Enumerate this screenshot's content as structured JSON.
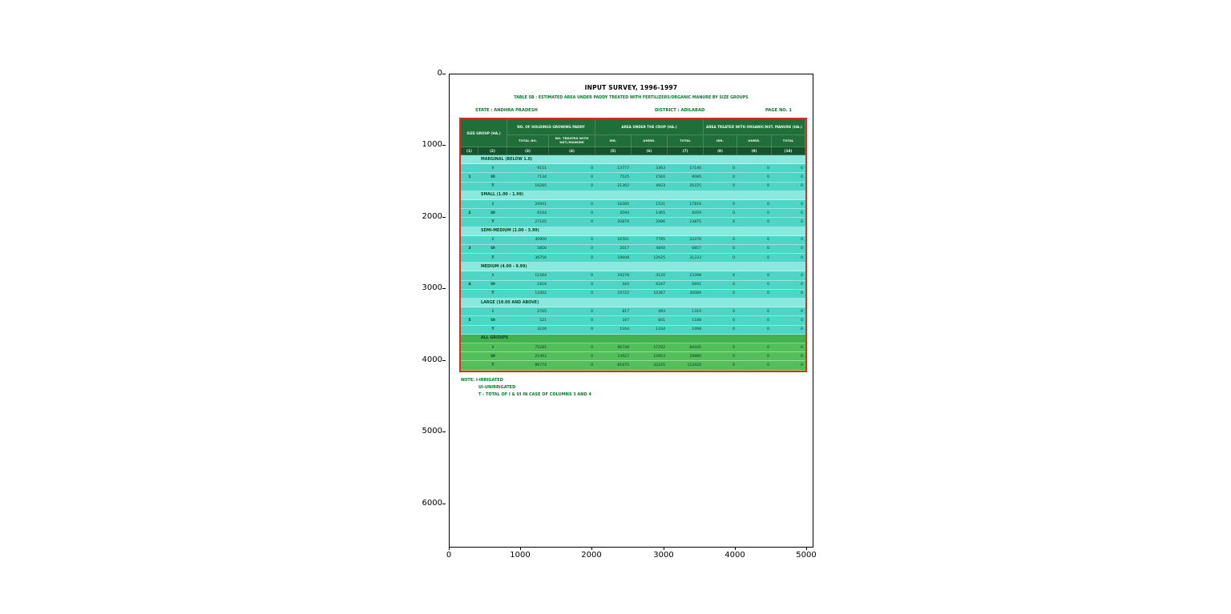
{
  "figure": {
    "axes": {
      "x_ticks": [
        "0",
        "1000",
        "2000",
        "3000",
        "4000",
        "5000"
      ],
      "y_ticks": [
        "0",
        "1000",
        "2000",
        "3000",
        "4000",
        "5000",
        "6000"
      ]
    }
  },
  "document": {
    "title": "INPUT SURVEY, 1996-1997",
    "subtitle": "TABLE 5B : ESTIMATED AREA UNDER PADDY TREATED WITH FERTILIZERS/ORGANIC MANURE BY SIZE GROUPS",
    "state_label": "STATE : ANDHRA PRADESH",
    "district_label": "DISTRICT : ADILABAD",
    "page_label": "PAGE NO. 1",
    "notes": [
      "NOTE: I-IRRIGATED",
      "UI-UNIRRIGATED",
      "T - TOTAL OF I & UI IN CASE OF COLUMNS 3 AND 4"
    ]
  },
  "table": {
    "col_groups": [
      "SIZE GROUP (HA.)",
      "NO. OF HOLDINGS GROWING PADDY",
      "AREA UNDER THE CROP (HA.)",
      "AREA TREATED WITH ORGANIC/NUT. MANURE (HA.)"
    ],
    "sub_headers": [
      "TOTAL NO.",
      "NO. TREATED WITH NUT./MANURE",
      "IRR.",
      "UNIRR.",
      "TOTAL",
      "IRR.",
      "UNIRR.",
      "TOTAL"
    ],
    "col_numbers": [
      "(1)",
      "(2)",
      "(3)",
      "(4)",
      "(5)",
      "(6)",
      "(7)",
      "(8)",
      "(9)",
      "(10)"
    ],
    "groups": [
      {
        "no": "1",
        "label": "MARGINAL (BELOW 1.0)",
        "all": false,
        "rows": [
          {
            "type": "I",
            "values": [
              "9151",
              "0",
              "13777",
              "3363",
              "17140",
              "0",
              "0",
              "0"
            ]
          },
          {
            "type": "UI",
            "values": [
              "7134",
              "0",
              "7525",
              "1560",
              "9085",
              "0",
              "0",
              "0"
            ]
          },
          {
            "type": "T",
            "values": [
              "16285",
              "0",
              "21302",
              "4923",
              "26225",
              "0",
              "0",
              "0"
            ]
          }
        ]
      },
      {
        "no": "2",
        "label": "SMALL (1.00 - 1.99)",
        "all": false,
        "rows": [
          {
            "type": "I",
            "values": [
              "20941",
              "0",
              "16285",
              "1531",
              "17816",
              "0",
              "0",
              "0"
            ]
          },
          {
            "type": "UI",
            "values": [
              "6164",
              "0",
              "4594",
              "1465",
              "6059",
              "0",
              "0",
              "0"
            ]
          },
          {
            "type": "T",
            "values": [
              "27105",
              "0",
              "20879",
              "2996",
              "23875",
              "0",
              "0",
              "0"
            ]
          }
        ]
      },
      {
        "no": "3",
        "label": "SEMI-MEDIUM (2.00 - 3.99)",
        "all": false,
        "rows": [
          {
            "type": "I",
            "values": [
              "30900",
              "0",
              "16591",
              "7785",
              "24376",
              "0",
              "0",
              "0"
            ]
          },
          {
            "type": "UI",
            "values": [
              "5856",
              "0",
              "2017",
              "4840",
              "6857",
              "0",
              "0",
              "0"
            ]
          },
          {
            "type": "T",
            "values": [
              "36756",
              "0",
              "18608",
              "12625",
              "31233",
              "0",
              "0",
              "0"
            ]
          }
        ]
      },
      {
        "no": "4",
        "label": "MEDIUM (4.00 - 9.99)",
        "all": false,
        "rows": [
          {
            "type": "I",
            "values": [
              "11584",
              "0",
              "19278",
              "4120",
              "23398",
              "0",
              "0",
              "0"
            ]
          },
          {
            "type": "UI",
            "values": [
              "1818",
              "0",
              "444",
              "6247",
              "6691",
              "0",
              "0",
              "0"
            ]
          },
          {
            "type": "T",
            "values": [
              "13402",
              "0",
              "19722",
              "10367",
              "30089",
              "0",
              "0",
              "0"
            ]
          }
        ]
      },
      {
        "no": "5",
        "label": "LARGE (10.00 AND ABOVE)",
        "all": false,
        "rows": [
          {
            "type": "I",
            "values": [
              "2705",
              "0",
              "817",
              "493",
              "1310",
              "0",
              "0",
              "0"
            ]
          },
          {
            "type": "UI",
            "values": [
              "521",
              "0",
              "347",
              "841",
              "1188",
              "0",
              "0",
              "0"
            ]
          },
          {
            "type": "T",
            "values": [
              "3226",
              "0",
              "1164",
              "1334",
              "2498",
              "0",
              "0",
              "0"
            ]
          }
        ]
      },
      {
        "no": "",
        "label": "ALL GROUPS",
        "all": true,
        "rows": [
          {
            "type": "I",
            "values": [
              "75281",
              "0",
              "66748",
              "17292",
              "84040",
              "0",
              "0",
              "0"
            ]
          },
          {
            "type": "UI",
            "values": [
              "21493",
              "0",
              "14927",
              "14953",
              "29880",
              "0",
              "0",
              "0"
            ]
          },
          {
            "type": "T",
            "values": [
              "96774",
              "0",
              "81675",
              "32245",
              "113920",
              "0",
              "0",
              "0"
            ]
          }
        ]
      }
    ]
  },
  "colors": {
    "header_green": "#206e3a",
    "header_dark_green": "#14532d",
    "row_cyan": "#4fd5c5",
    "section_cyan": "#8be8de",
    "all_groups_green": "#53bf5b",
    "table_border_red": "#d03222",
    "accent_text_green": "#047a2a"
  }
}
